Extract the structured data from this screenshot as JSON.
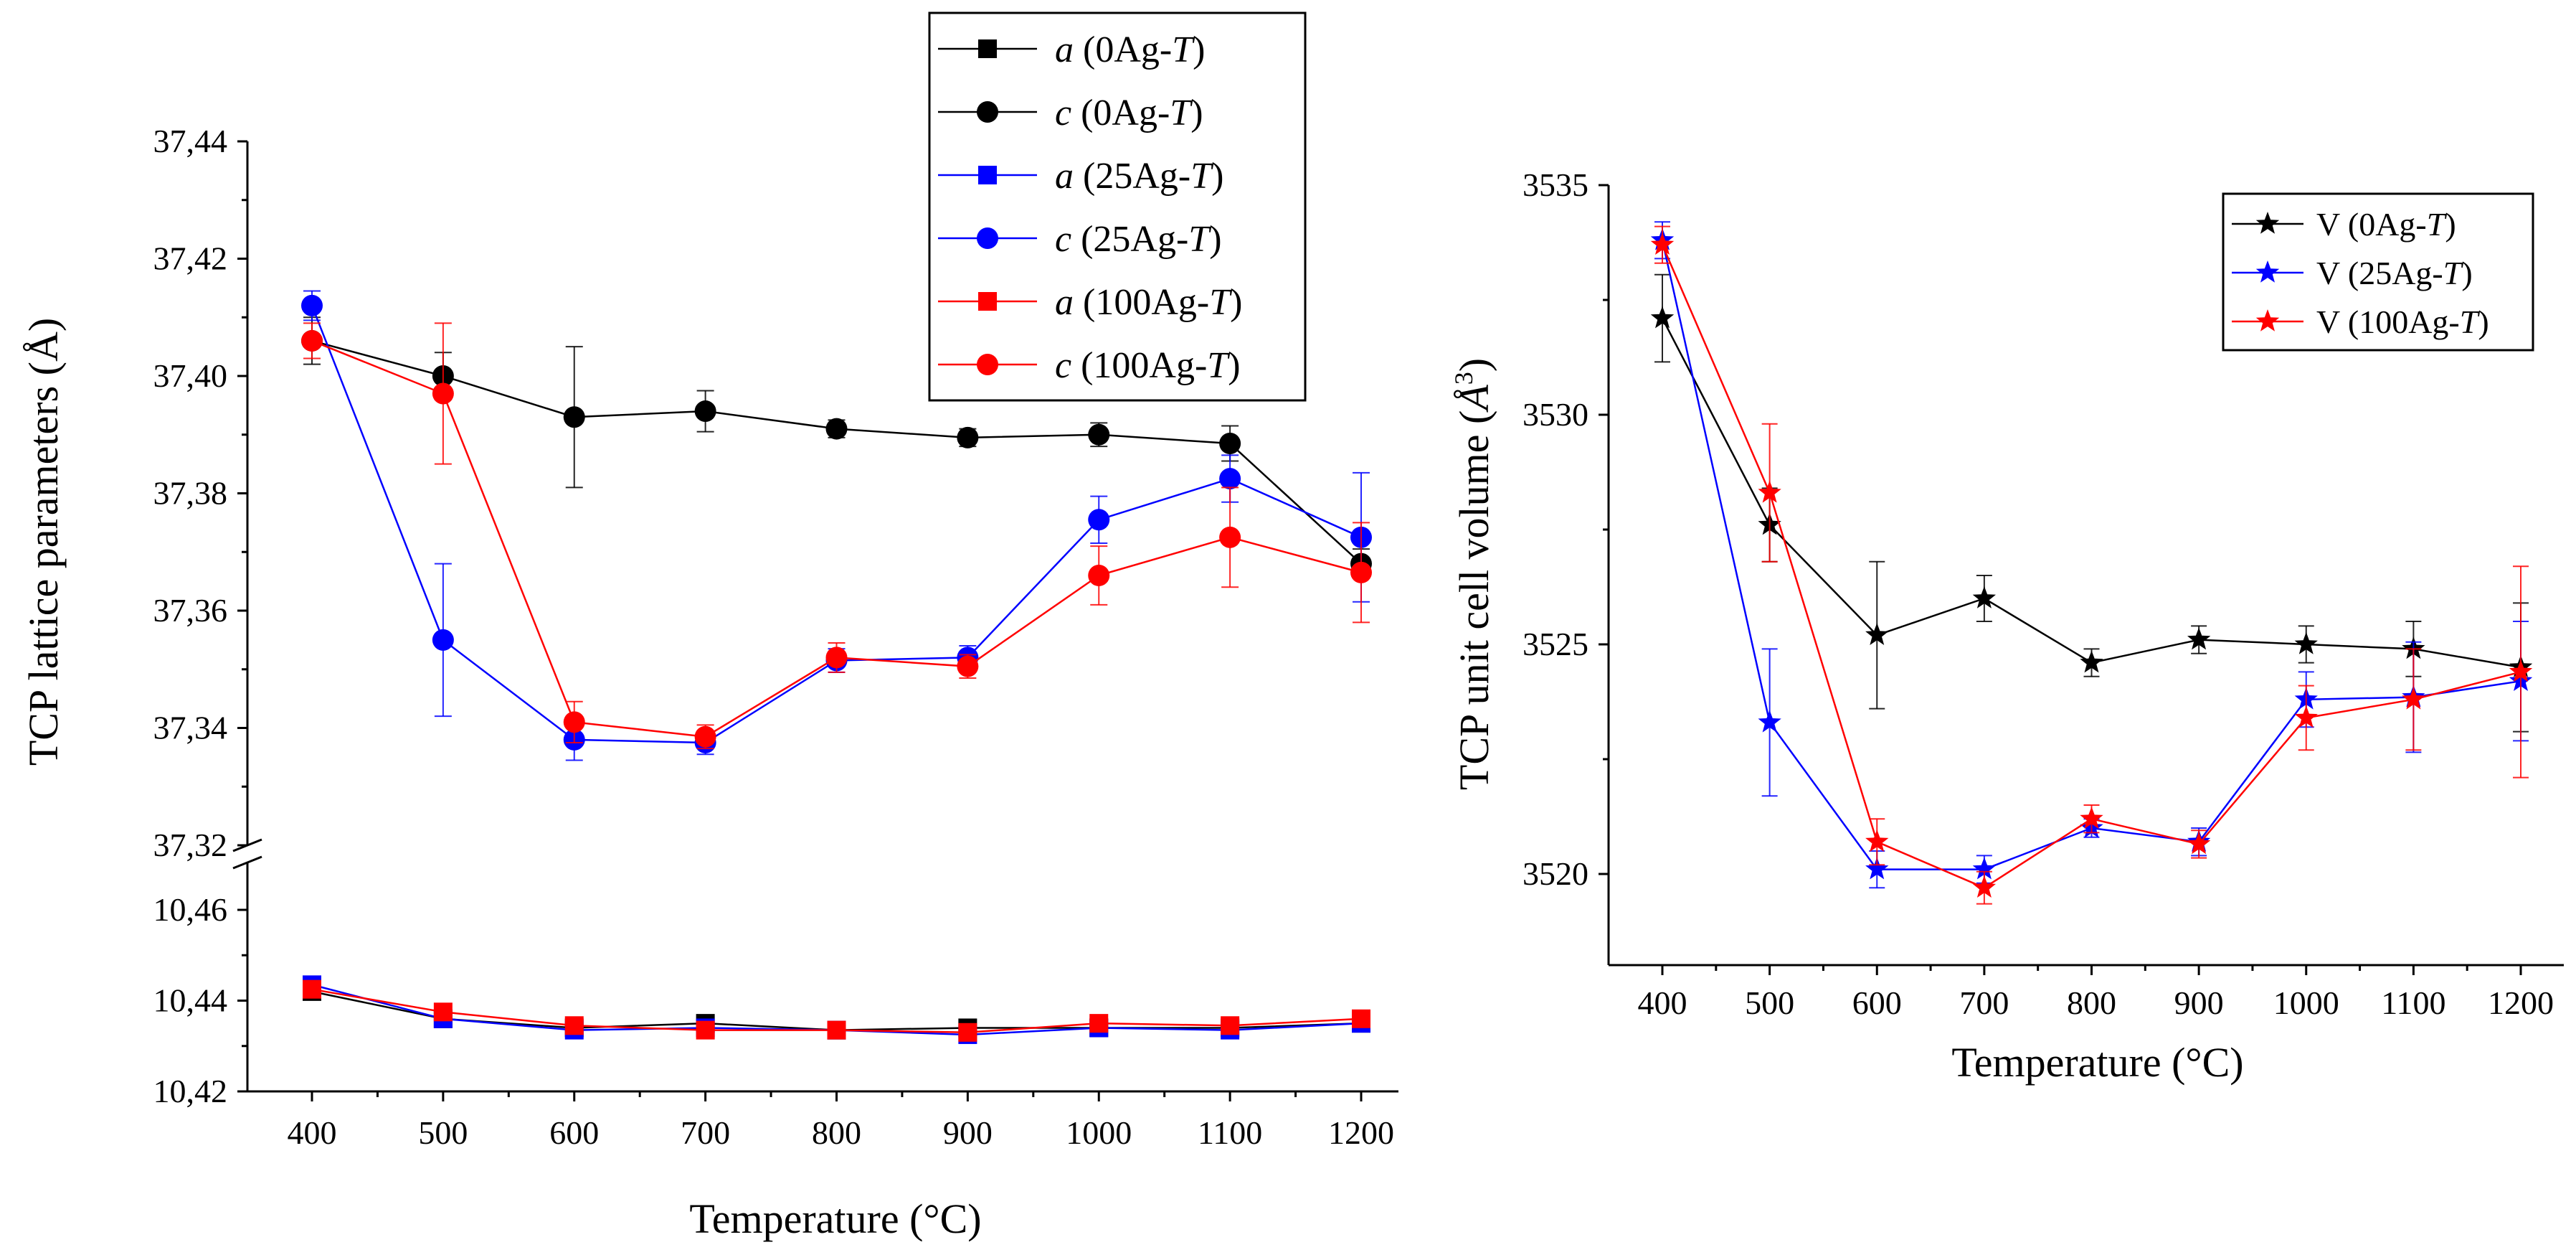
{
  "chart_data": [
    {
      "type": "line",
      "panel": "left",
      "error_bars": true,
      "broken_y_axis": true,
      "xlabel": "Temperature (°C)",
      "ylabel": "TCP lattice parameters (Å)",
      "x": [
        400,
        500,
        600,
        700,
        800,
        900,
        1000,
        1100,
        1200
      ],
      "x_tick_labels": [
        "400",
        "500",
        "600",
        "700",
        "800",
        "900",
        "1000",
        "1100",
        "1200"
      ],
      "upper_ylim": [
        37.32,
        37.44
      ],
      "upper_y_tick_labels": [
        "37,32",
        "37,34",
        "37,36",
        "37,38",
        "37,40",
        "37,42",
        "37,44"
      ],
      "upper_y_ticks": [
        37.32,
        37.34,
        37.36,
        37.38,
        37.4,
        37.42,
        37.44
      ],
      "lower_ylim": [
        10.42,
        10.47
      ],
      "lower_y_tick_labels": [
        "10,42",
        "10,44",
        "10,46"
      ],
      "lower_y_ticks": [
        10.42,
        10.44,
        10.46
      ],
      "legend_position": "top-right",
      "series": [
        {
          "param": "a",
          "sample": "0Ag-T",
          "marker": "square",
          "color": "#000000",
          "part": "lower",
          "values": [
            10.442,
            10.436,
            10.434,
            10.435,
            10.4335,
            10.434,
            10.434,
            10.434,
            10.435
          ],
          "errors": [
            0.001,
            0.001,
            0.0008,
            0.0008,
            0.0006,
            0.0006,
            0.0006,
            0.0006,
            0.0008
          ]
        },
        {
          "param": "c",
          "sample": "0Ag-T",
          "marker": "circle",
          "color": "#000000",
          "part": "upper",
          "values": [
            37.406,
            37.4,
            37.393,
            37.394,
            37.391,
            37.3895,
            37.39,
            37.3885,
            37.368
          ],
          "errors": [
            0.004,
            0.004,
            0.012,
            0.0035,
            0.0015,
            0.0015,
            0.002,
            0.003,
            0.0025
          ]
        },
        {
          "param": "a",
          "sample": "25Ag-T",
          "marker": "square",
          "color": "#0000ff",
          "part": "lower",
          "values": [
            10.4435,
            10.436,
            10.4335,
            10.434,
            10.4335,
            10.4325,
            10.434,
            10.4335,
            10.435
          ],
          "errors": [
            0.001,
            0.001,
            0.0008,
            0.0008,
            0.0006,
            0.0006,
            0.0006,
            0.0006,
            0.0008
          ]
        },
        {
          "param": "c",
          "sample": "25Ag-T",
          "marker": "circle",
          "color": "#0000ff",
          "part": "upper",
          "values": [
            37.412,
            37.355,
            37.338,
            37.3375,
            37.3515,
            37.352,
            37.3755,
            37.3825,
            37.3725
          ],
          "errors": [
            0.0025,
            0.013,
            0.0035,
            0.002,
            0.002,
            0.002,
            0.004,
            0.004,
            0.011
          ]
        },
        {
          "param": "a",
          "sample": "100Ag-T",
          "marker": "square",
          "color": "#ff0000",
          "part": "lower",
          "values": [
            10.4425,
            10.4375,
            10.4345,
            10.4335,
            10.4335,
            10.433,
            10.435,
            10.4345,
            10.436
          ],
          "errors": [
            0.001,
            0.001,
            0.0008,
            0.0008,
            0.0006,
            0.0006,
            0.0006,
            0.0006,
            0.0008
          ]
        },
        {
          "param": "c",
          "sample": "100Ag-T",
          "marker": "circle",
          "color": "#ff0000",
          "part": "upper",
          "values": [
            37.406,
            37.397,
            37.341,
            37.3385,
            37.352,
            37.3505,
            37.366,
            37.3725,
            37.3665
          ],
          "errors": [
            0.003,
            0.012,
            0.0035,
            0.002,
            0.0025,
            0.002,
            0.005,
            0.0085,
            0.0085
          ]
        }
      ]
    },
    {
      "type": "line",
      "panel": "right",
      "error_bars": true,
      "xlabel": "Temperature (°C)",
      "ylabel": "TCP unit cell volume (Å³)",
      "x": [
        400,
        500,
        600,
        700,
        800,
        900,
        1000,
        1100,
        1200
      ],
      "x_tick_labels": [
        "400",
        "500",
        "600",
        "700",
        "800",
        "900",
        "1000",
        "1100",
        "1200"
      ],
      "ylim": [
        3518.2,
        3535.2
      ],
      "y_tick_labels": [
        "3520",
        "3525",
        "3530",
        "3535"
      ],
      "y_ticks": [
        3520,
        3525,
        3530,
        3535
      ],
      "legend_position": "top-right",
      "series": [
        {
          "label": "V",
          "sample": "0Ag-T",
          "marker": "star",
          "color": "#000000",
          "values": [
            3532.1,
            3527.6,
            3525.2,
            3526.0,
            3524.6,
            3525.1,
            3525.0,
            3524.9,
            3524.5
          ],
          "errors": [
            0.95,
            0.8,
            1.6,
            0.5,
            0.3,
            0.3,
            0.4,
            0.6,
            1.4
          ]
        },
        {
          "label": "V",
          "sample": "25Ag-T",
          "marker": "star",
          "color": "#0000ff",
          "values": [
            3533.8,
            3523.3,
            3520.1,
            3520.1,
            3521.0,
            3520.7,
            3523.8,
            3523.85,
            3524.2
          ],
          "errors": [
            0.4,
            1.6,
            0.4,
            0.3,
            0.2,
            0.3,
            0.6,
            1.2,
            1.3
          ]
        },
        {
          "label": "V",
          "sample": "100Ag-T",
          "marker": "star",
          "color": "#ff0000",
          "values": [
            3533.7,
            3528.3,
            3520.7,
            3519.7,
            3521.2,
            3520.65,
            3523.4,
            3523.8,
            3524.4
          ],
          "errors": [
            0.4,
            1.5,
            0.5,
            0.35,
            0.3,
            0.3,
            0.7,
            1.1,
            2.3
          ]
        }
      ]
    }
  ]
}
